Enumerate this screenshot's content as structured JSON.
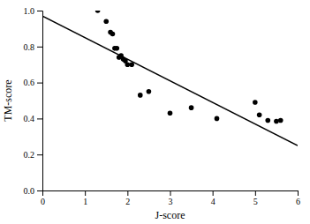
{
  "chart_data": {
    "type": "scatter",
    "xlabel": "J-score",
    "ylabel": "TM-score",
    "series": [
      {
        "type": "scatter",
        "color": "black",
        "x": [
          1.3,
          1.5,
          1.6,
          1.65,
          1.7,
          1.75,
          1.8,
          1.85,
          1.9,
          1.95,
          2.0,
          2.1,
          2.3,
          2.5,
          3.0,
          3.5,
          4.1,
          5.0,
          5.1,
          5.3,
          5.5,
          5.6
        ],
        "values": [
          1.0,
          0.94,
          0.88,
          0.87,
          0.79,
          0.79,
          0.74,
          0.75,
          0.73,
          0.72,
          0.7,
          0.7,
          0.53,
          0.55,
          0.43,
          0.46,
          0.4,
          0.49,
          0.42,
          0.39,
          0.385,
          0.39
        ]
      },
      {
        "type": "line",
        "color": "black",
        "x": [
          0.0,
          6.0
        ],
        "values": [
          0.97,
          0.25
        ]
      }
    ],
    "xlim": [
      0,
      6
    ],
    "ylim": [
      0.0,
      1.0
    ],
    "xticks": [
      0,
      1,
      2,
      3,
      4,
      5,
      6
    ],
    "yticks": [
      {
        "value": 0,
        "label": "0.0"
      },
      0.2,
      0.4,
      0.6,
      0.8,
      {
        "value": 1,
        "label": "1.0"
      }
    ],
    "grid": false
  }
}
